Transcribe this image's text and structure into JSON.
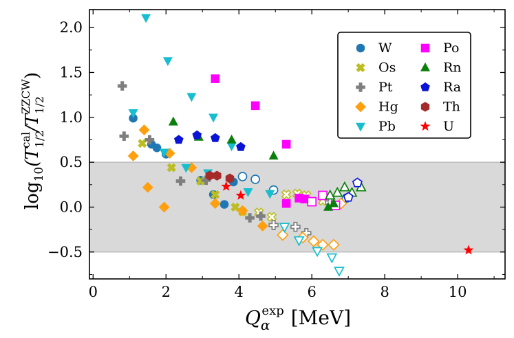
{
  "chart_data": {
    "type": "scatter",
    "xlabel_parts": {
      "main": "Q",
      "sub": "α",
      "sup": "exp",
      "unit": "[MeV]"
    },
    "ylabel_parts": {
      "fn": "log",
      "fn_sub": "10",
      "open": "(T",
      "sub1": "1/2",
      "sup1": "cal",
      "slash": "/T",
      "sub2": "1/2",
      "sup2": "ZZCW",
      "close": ")"
    },
    "xlim": [
      -0.1,
      11.3
    ],
    "ylim": [
      -0.8,
      2.2
    ],
    "xticks": [
      0,
      2,
      4,
      6,
      8,
      10
    ],
    "yticks": [
      -0.5,
      0.0,
      0.5,
      1.0,
      1.5,
      2.0
    ],
    "xtick_labels": [
      "0",
      "2",
      "4",
      "6",
      "8",
      "10"
    ],
    "ytick_labels": [
      "−0.5",
      "0.0",
      "0.5",
      "1.0",
      "1.5",
      "2.0"
    ],
    "band": {
      "ymin": -0.5,
      "ymax": 0.5,
      "color": "#d9d9d9"
    },
    "legend": {
      "placement": "upper-right",
      "columns": 2
    },
    "series": [
      {
        "name": "W",
        "marker": "circle",
        "color": "#1f77b4",
        "filled": [
          [
            1.1,
            0.99
          ],
          [
            1.6,
            0.7
          ],
          [
            1.75,
            0.66
          ],
          [
            2.0,
            0.59
          ],
          [
            2.95,
            0.3
          ],
          [
            3.3,
            0.14
          ],
          [
            3.6,
            0.03
          ],
          [
            3.85,
            0.28
          ]
        ],
        "open": [
          [
            4.1,
            0.34
          ],
          [
            4.45,
            0.31
          ],
          [
            4.95,
            0.19
          ],
          [
            6.95,
            0.1
          ]
        ]
      },
      {
        "name": "Os",
        "marker": "x",
        "color": "#bcbd22",
        "filled": [
          [
            1.35,
            0.71
          ],
          [
            2.15,
            0.44
          ],
          [
            2.95,
            0.29
          ],
          [
            3.35,
            0.14
          ],
          [
            3.9,
            0.0
          ],
          [
            4.1,
            -0.05
          ]
        ],
        "open": [
          [
            5.3,
            0.14
          ],
          [
            5.6,
            0.15
          ],
          [
            5.85,
            0.13
          ],
          [
            4.55,
            -0.06
          ],
          [
            4.9,
            -0.11
          ],
          [
            6.3,
            0.07
          ]
        ]
      },
      {
        "name": "Pt",
        "marker": "plus",
        "color": "#7f7f7f",
        "filled": [
          [
            0.8,
            1.35
          ],
          [
            0.85,
            0.79
          ],
          [
            1.55,
            0.75
          ],
          [
            2.4,
            0.29
          ],
          [
            3.1,
            0.3
          ],
          [
            4.3,
            -0.12
          ],
          [
            4.6,
            -0.1
          ]
        ],
        "open": [
          [
            4.95,
            -0.2
          ],
          [
            5.55,
            -0.22
          ],
          [
            5.85,
            -0.29
          ],
          [
            6.5,
            0.05
          ]
        ]
      },
      {
        "name": "Hg",
        "marker": "diamond",
        "color": "#ff9f0e",
        "filled": [
          [
            1.1,
            0.57
          ],
          [
            1.4,
            0.86
          ],
          [
            1.5,
            0.22
          ],
          [
            1.95,
            0.0
          ],
          [
            2.1,
            0.6
          ],
          [
            2.7,
            0.44
          ],
          [
            3.35,
            0.04
          ],
          [
            4.1,
            -0.04
          ],
          [
            4.65,
            -0.21
          ]
        ],
        "open": [
          [
            5.2,
            -0.31
          ],
          [
            5.75,
            -0.34
          ],
          [
            6.05,
            -0.38
          ],
          [
            6.3,
            -0.42
          ],
          [
            6.6,
            -0.42
          ],
          [
            6.8,
            0.04
          ]
        ]
      },
      {
        "name": "Pb",
        "marker": "triangle-down",
        "color": "#17becf",
        "filled": [
          [
            1.45,
            2.11
          ],
          [
            1.1,
            1.05
          ],
          [
            2.05,
            1.63
          ],
          [
            2.7,
            1.23
          ],
          [
            3.3,
            1.0
          ],
          [
            1.95,
            0.61
          ],
          [
            2.55,
            0.44
          ],
          [
            3.15,
            0.38
          ],
          [
            3.8,
            0.68
          ],
          [
            4.25,
            0.17
          ],
          [
            4.85,
            0.15
          ]
        ],
        "open": [
          [
            5.25,
            -0.22
          ],
          [
            5.65,
            -0.37
          ],
          [
            6.15,
            -0.49
          ],
          [
            6.55,
            -0.56
          ],
          [
            6.75,
            -0.71
          ]
        ]
      },
      {
        "name": "Po",
        "marker": "square",
        "color": "#ff00ff",
        "filled": [
          [
            3.35,
            1.43
          ],
          [
            4.45,
            1.13
          ],
          [
            5.3,
            0.7
          ],
          [
            5.3,
            0.04
          ],
          [
            5.65,
            0.1
          ],
          [
            5.8,
            0.09
          ]
        ],
        "open": [
          [
            6.0,
            0.06
          ],
          [
            6.3,
            0.13
          ],
          [
            6.65,
            0.02
          ]
        ]
      },
      {
        "name": "Rn",
        "marker": "triangle-up",
        "color": "#0b7f0b",
        "filled": [
          [
            2.2,
            0.95
          ],
          [
            2.9,
            0.78
          ],
          [
            3.8,
            0.75
          ],
          [
            4.95,
            0.57
          ],
          [
            6.45,
            0.0
          ],
          [
            6.6,
            0.04
          ]
        ],
        "open": [
          [
            6.5,
            0.13
          ],
          [
            6.7,
            0.16
          ],
          [
            6.9,
            0.22
          ],
          [
            7.1,
            0.16
          ],
          [
            7.35,
            0.22
          ]
        ]
      },
      {
        "name": "Ra",
        "marker": "pentagon",
        "color": "#0a14d6",
        "filled": [
          [
            2.35,
            0.75
          ],
          [
            2.85,
            0.8
          ],
          [
            3.35,
            0.77
          ],
          [
            4.05,
            0.67
          ]
        ],
        "open": [
          [
            7.0,
            0.11
          ],
          [
            7.25,
            0.27
          ]
        ]
      },
      {
        "name": "Th",
        "marker": "hexagon",
        "color": "#a52b2b",
        "filled": [
          [
            3.2,
            0.35
          ],
          [
            3.4,
            0.35
          ],
          [
            3.75,
            0.32
          ]
        ],
        "open": []
      },
      {
        "name": "U",
        "marker": "star",
        "color": "#ff0000",
        "filled": [
          [
            3.65,
            0.23
          ],
          [
            4.05,
            0.13
          ],
          [
            10.3,
            -0.48
          ]
        ],
        "open": []
      }
    ]
  }
}
